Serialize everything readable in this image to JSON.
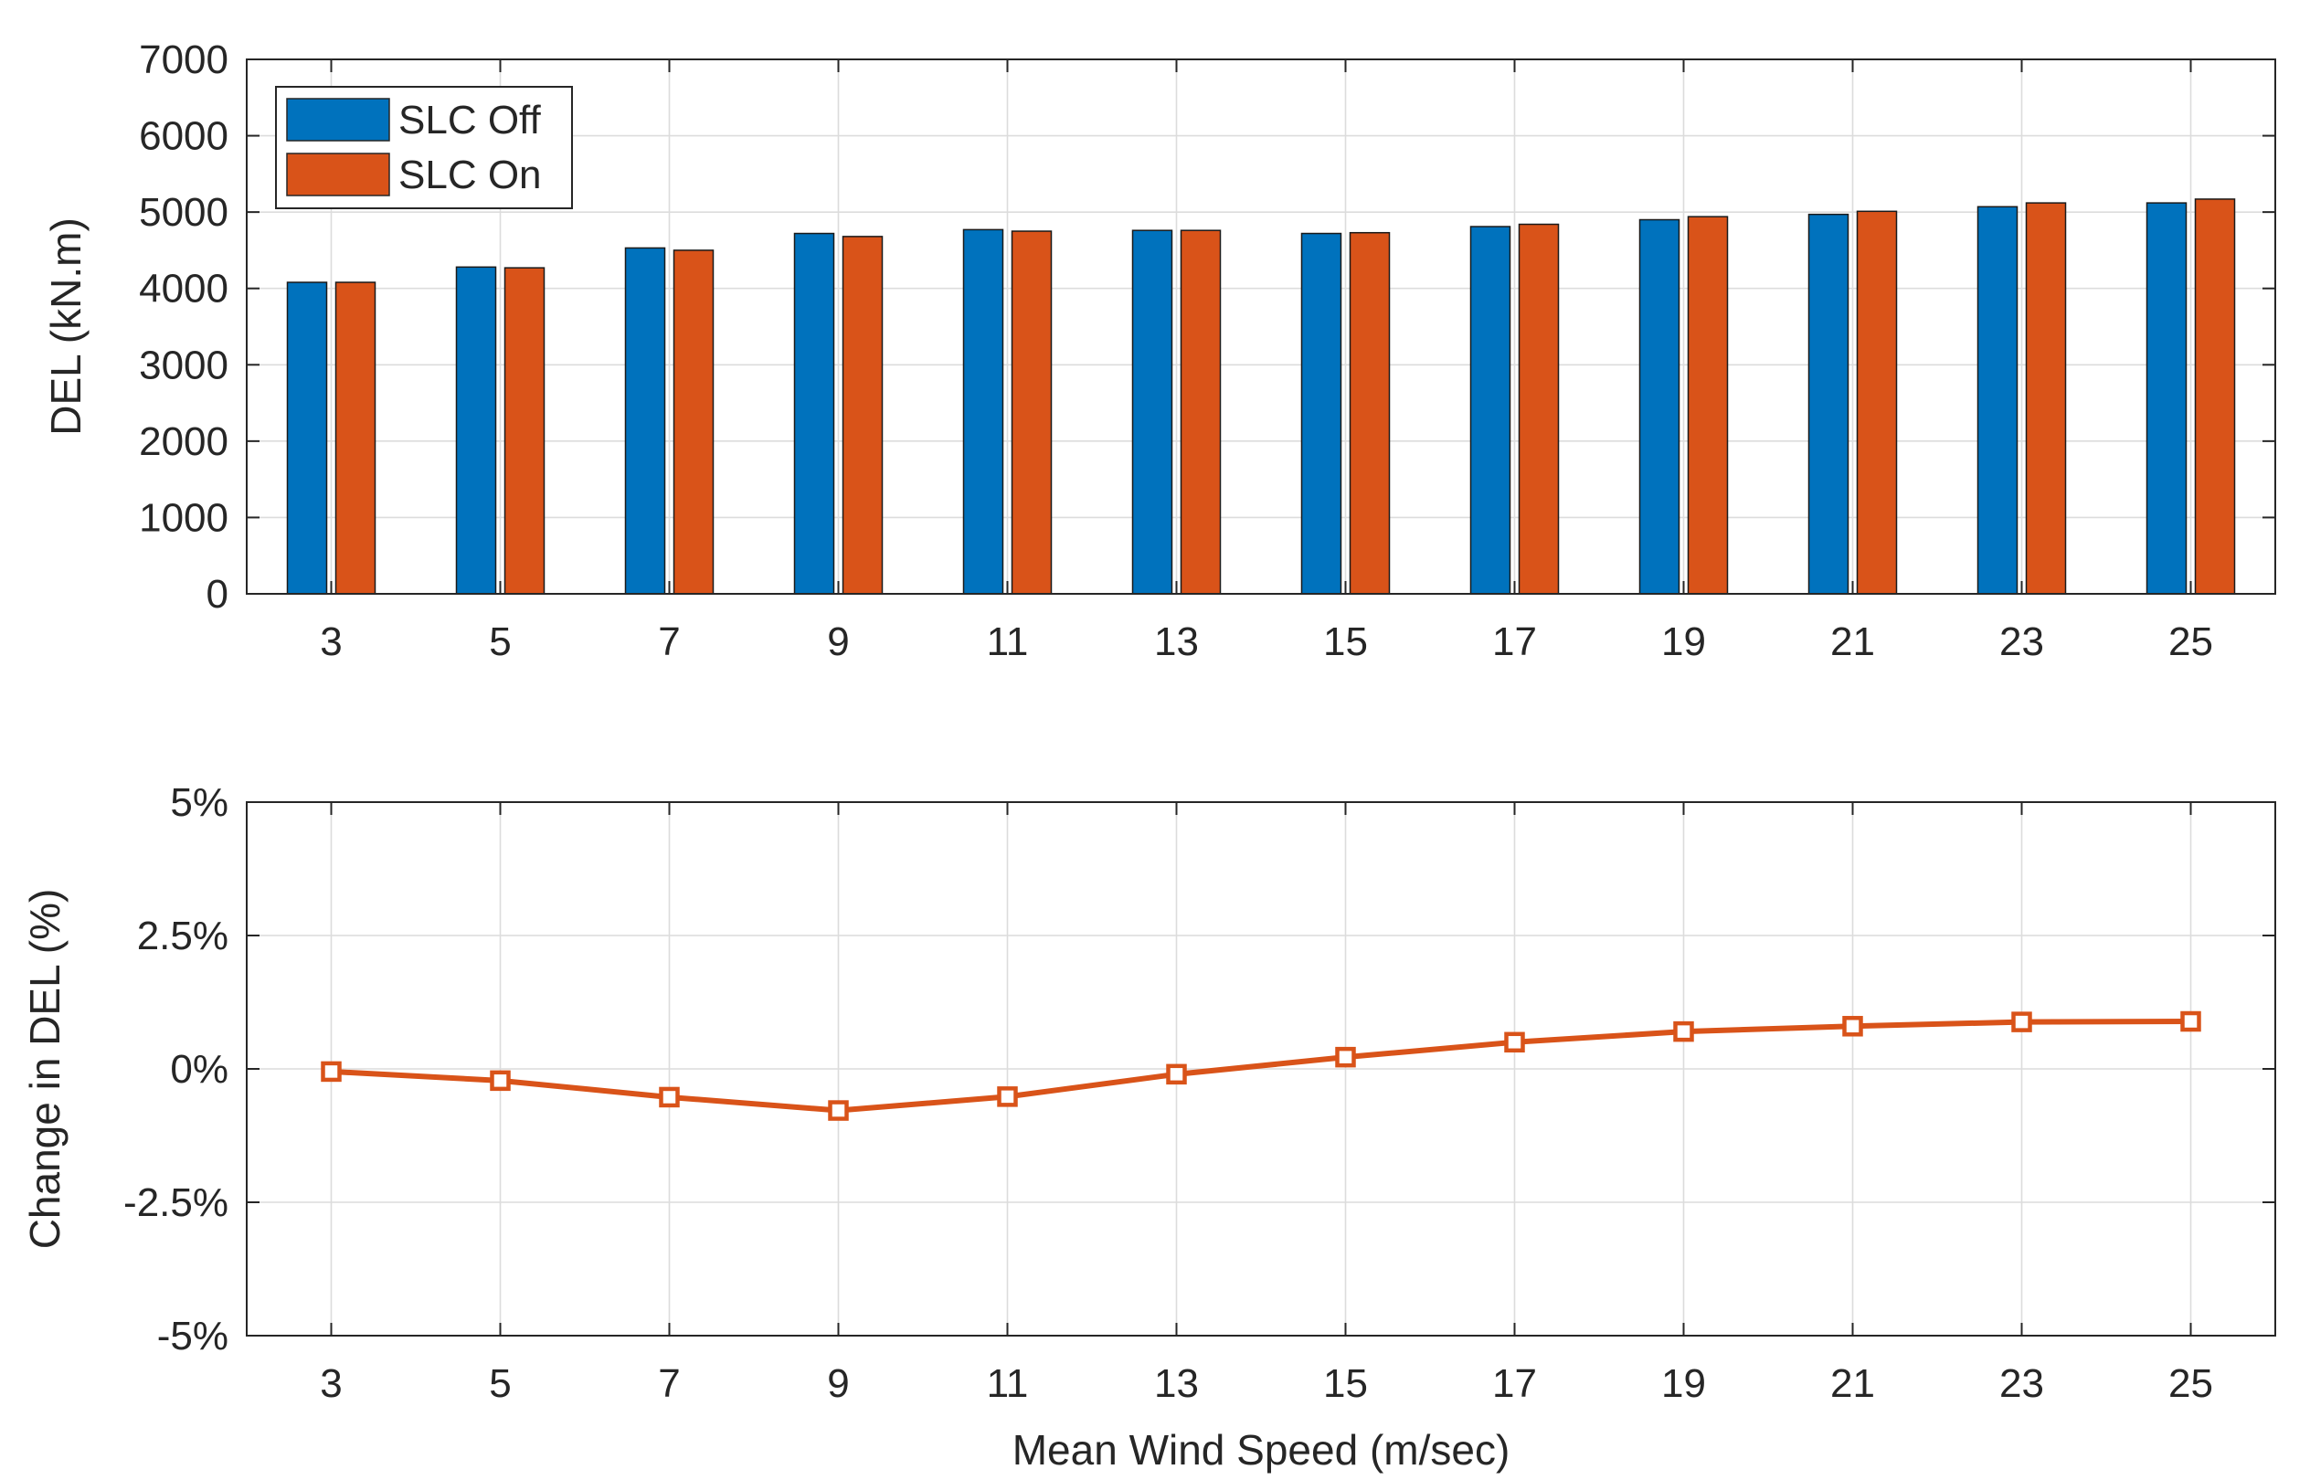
{
  "chart_data": [
    {
      "type": "bar",
      "title": "",
      "xlabel": "",
      "ylabel": "DEL (kN.m)",
      "categories": [
        "3",
        "5",
        "7",
        "9",
        "11",
        "13",
        "15",
        "17",
        "19",
        "21",
        "23",
        "25"
      ],
      "series": [
        {
          "name": "SLC Off",
          "color": "#0072BD",
          "values": [
            4080,
            4280,
            4530,
            4720,
            4770,
            4760,
            4720,
            4810,
            4900,
            4970,
            5070,
            5120
          ]
        },
        {
          "name": "SLC On",
          "color": "#D95319",
          "values": [
            4080,
            4270,
            4500,
            4680,
            4750,
            4760,
            4730,
            4840,
            4940,
            5010,
            5120,
            5170
          ]
        }
      ],
      "ylim": [
        0,
        7000
      ],
      "yticks": [
        0,
        1000,
        2000,
        3000,
        4000,
        5000,
        6000,
        7000
      ],
      "ytick_labels": [
        "0",
        "1000",
        "2000",
        "3000",
        "4000",
        "5000",
        "6000",
        "7000"
      ],
      "grid": true,
      "legend_position": "top-left"
    },
    {
      "type": "line",
      "title": "",
      "xlabel": "Mean Wind Speed (m/sec)",
      "ylabel": "Change in DEL (%)",
      "x": [
        3,
        5,
        7,
        9,
        11,
        13,
        15,
        17,
        19,
        21,
        23,
        25
      ],
      "x_tick_labels": [
        "3",
        "5",
        "7",
        "9",
        "11",
        "13",
        "15",
        "17",
        "19",
        "21",
        "23",
        "25"
      ],
      "series": [
        {
          "name": "Change in DEL",
          "color": "#D95319",
          "marker": "square",
          "values": [
            -0.05,
            -0.22,
            -0.53,
            -0.78,
            -0.52,
            -0.1,
            0.22,
            0.5,
            0.7,
            0.8,
            0.88,
            0.89
          ]
        }
      ],
      "ylim": [
        -5,
        5
      ],
      "yticks": [
        -5,
        -2.5,
        0,
        2.5,
        5
      ],
      "ytick_labels": [
        "-5%",
        "-2.5%",
        "0%",
        "2.5%",
        "5%"
      ],
      "grid": true
    }
  ]
}
